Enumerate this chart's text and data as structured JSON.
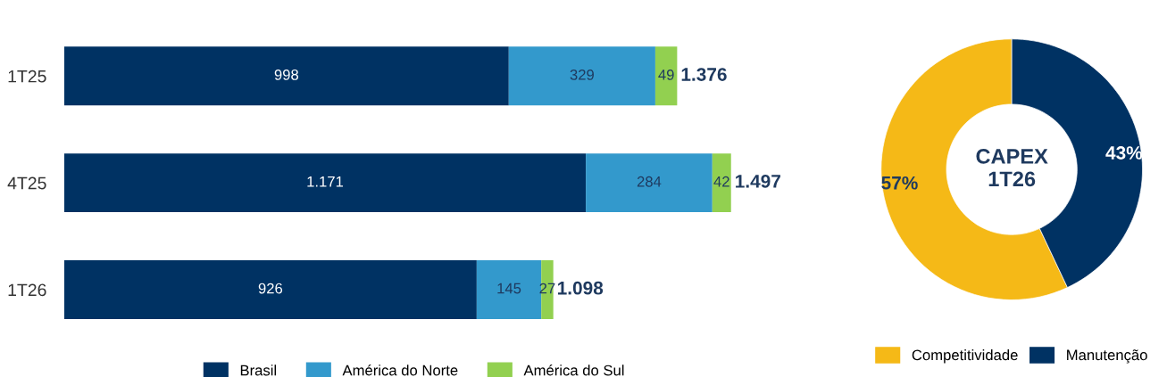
{
  "chart_data": [
    {
      "type": "bar",
      "orientation": "horizontal",
      "stacked": true,
      "categories": [
        "1T25",
        "4T25",
        "1T26"
      ],
      "series": [
        {
          "name": "Brasil",
          "color": "#003263",
          "values": [
            998,
            1171,
            926
          ],
          "value_labels": [
            "998",
            "1.171",
            "926"
          ]
        },
        {
          "name": "América do Norte",
          "color": "#3399cc",
          "values": [
            329,
            284,
            145
          ],
          "value_labels": [
            "329",
            "284",
            "145"
          ]
        },
        {
          "name": "América do Sul",
          "color": "#92d050",
          "values": [
            49,
            42,
            27
          ],
          "value_labels": [
            "49",
            "42",
            "27"
          ]
        }
      ],
      "totals": [
        "1.376",
        "1.497",
        "1.098"
      ],
      "legend": "bottom",
      "grid": false,
      "tick_labels": "y"
    },
    {
      "type": "donut",
      "title": "CAPEX\n1T26",
      "categories": [
        "Competitividade",
        "Manutenção"
      ],
      "values": [
        57,
        43
      ],
      "colors": [
        "#f5b917",
        "#003263"
      ],
      "value_labels": [
        "57%",
        "43%"
      ],
      "legend": "bottom"
    }
  ]
}
